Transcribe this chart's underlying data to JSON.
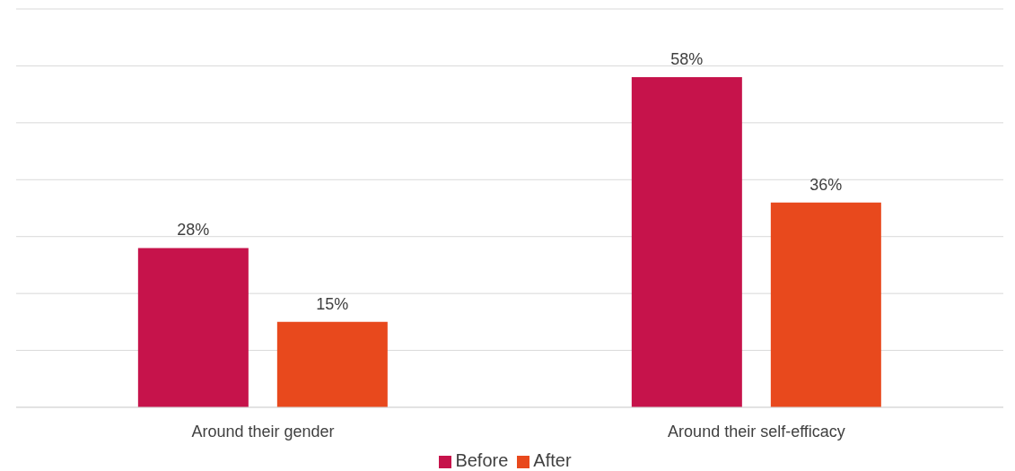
{
  "chart_data": {
    "type": "bar",
    "categories": [
      "Around their gender",
      "Around their self-efficacy"
    ],
    "series": [
      {
        "name": "Before",
        "color": "#c6134b",
        "values": [
          28,
          58
        ],
        "value_labels": [
          "28%",
          "58%"
        ]
      },
      {
        "name": "After",
        "color": "#e8491d",
        "values": [
          15,
          36
        ],
        "value_labels": [
          "15%",
          "36%"
        ]
      }
    ],
    "ylim": [
      0,
      70
    ],
    "yticks": [
      {
        "value": 0,
        "label": null
      },
      {
        "value": 10,
        "label": null
      },
      {
        "value": 20,
        "label": null
      },
      {
        "value": 30,
        "label": null
      },
      {
        "value": 40,
        "label": null
      },
      {
        "value": 50,
        "label": null
      },
      {
        "value": 60,
        "label": null
      },
      {
        "value": 70,
        "label": null
      }
    ],
    "grid": "y",
    "legend": "bottom",
    "tick_labels": "x"
  }
}
